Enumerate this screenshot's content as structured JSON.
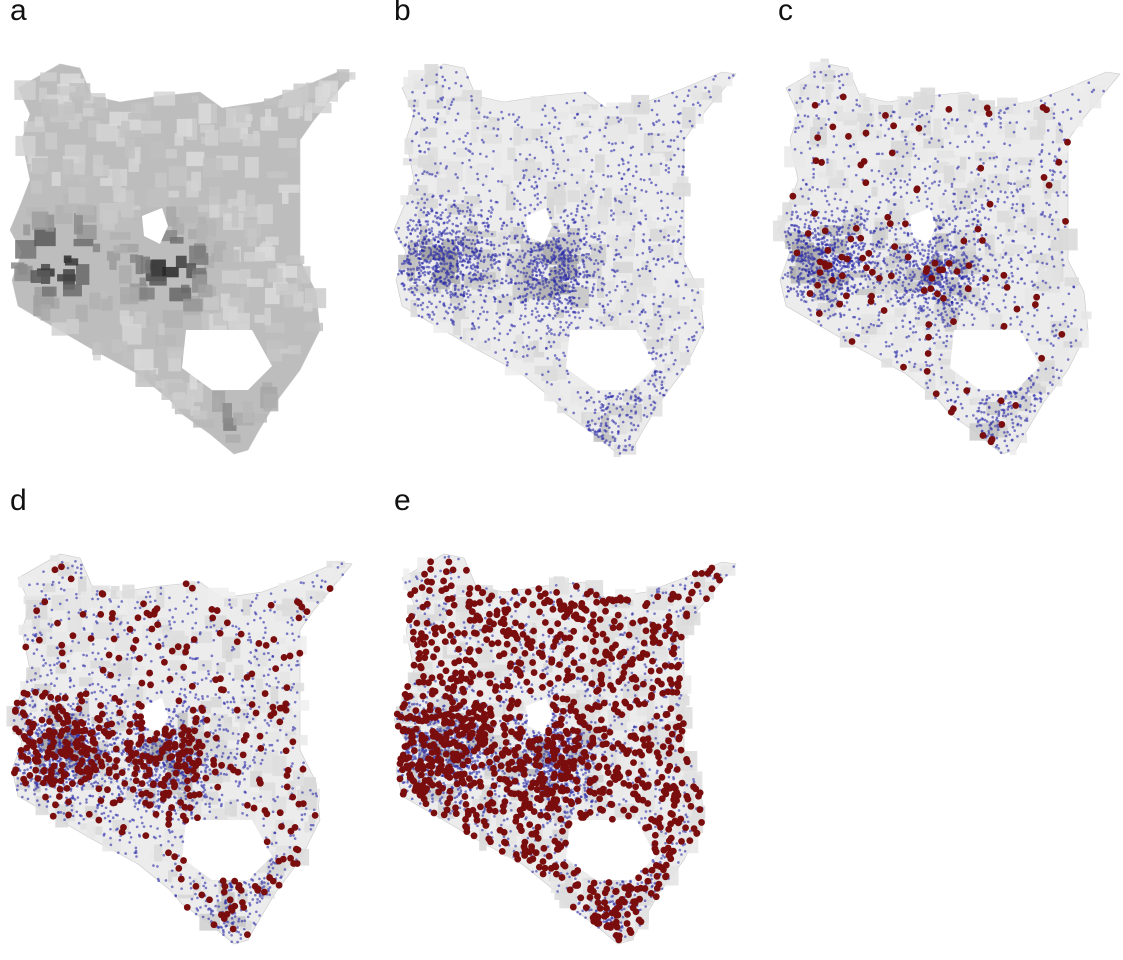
{
  "figure": {
    "panels": [
      {
        "id": "a",
        "label": "a",
        "blue": 0,
        "red": 0,
        "shade": "dark"
      },
      {
        "id": "b",
        "label": "b",
        "blue": 2200,
        "red": 0,
        "shade": "light"
      },
      {
        "id": "c",
        "label": "c",
        "blue": 2200,
        "red": 110,
        "shade": "light"
      },
      {
        "id": "d",
        "label": "d",
        "blue": 2200,
        "red": 500,
        "shade": "light"
      },
      {
        "id": "e",
        "label": "e",
        "blue": 2200,
        "red": 1200,
        "shade": "light"
      }
    ]
  },
  "colors": {
    "background": "#ffffff",
    "land_light": "#ececec",
    "land_dark": "#4a4a4a",
    "blue_points": "#2a2aa8",
    "red_points": "#7a0d0d"
  }
}
